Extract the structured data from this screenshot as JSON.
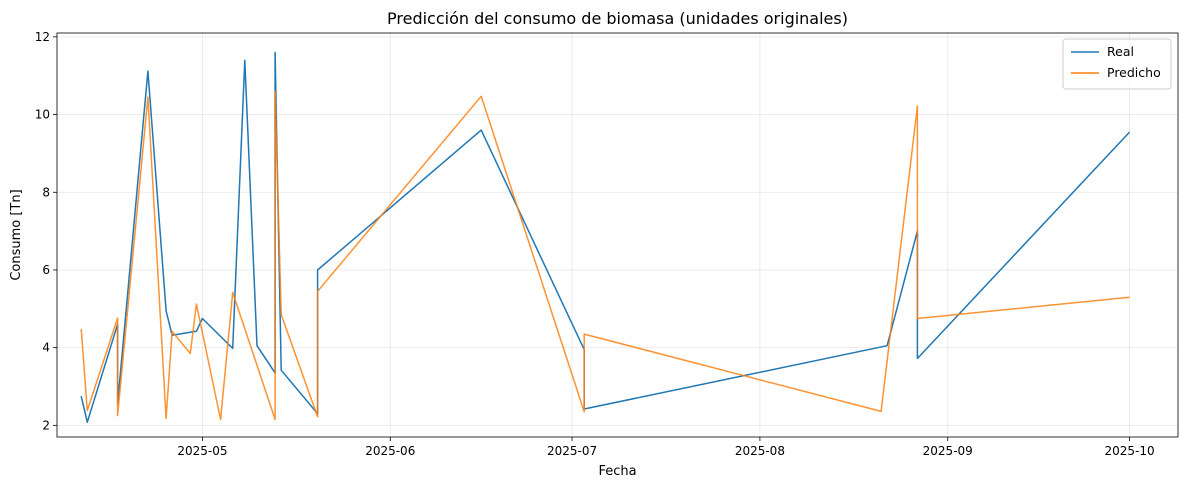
{
  "chart_data": {
    "type": "line",
    "title": "Predicción del consumo de biomasa (unidades originales)",
    "xlabel": "Fecha",
    "ylabel": "Consumo [Tn]",
    "x_type": "date",
    "xlim": [
      "2025-04-07",
      "2025-10-09"
    ],
    "ylim": [
      1.7,
      12.1
    ],
    "x_ticks": [
      "2025-05-01",
      "2025-06-01",
      "2025-07-01",
      "2025-08-01",
      "2025-09-01",
      "2025-10-01"
    ],
    "x_tick_labels": [
      "2025-05",
      "2025-06",
      "2025-07",
      "2025-08",
      "2025-09",
      "2025-10"
    ],
    "y_ticks": [
      2,
      4,
      6,
      8,
      10,
      12
    ],
    "y_tick_labels": [
      "2",
      "4",
      "6",
      "8",
      "10",
      "12"
    ],
    "grid": true,
    "legend_position": "top-right",
    "series": [
      {
        "name": "Real",
        "color": "#1f77b4",
        "x": [
          "2025-04-11",
          "2025-04-12",
          "2025-04-17",
          "2025-04-17",
          "2025-04-22",
          "2025-04-25",
          "2025-04-26",
          "2025-04-30",
          "2025-05-01",
          "2025-05-06",
          "2025-05-08",
          "2025-05-10",
          "2025-05-13",
          "2025-05-13",
          "2025-05-14",
          "2025-05-20",
          "2025-05-20",
          "2025-06-16",
          "2025-07-03",
          "2025-07-03",
          "2025-08-22",
          "2025-08-27",
          "2025-08-27",
          "2025-10-01"
        ],
        "values": [
          2.75,
          2.08,
          4.6,
          2.55,
          11.12,
          4.95,
          4.32,
          4.42,
          4.75,
          3.98,
          11.4,
          4.05,
          3.35,
          11.6,
          3.42,
          2.3,
          6.0,
          9.6,
          3.95,
          2.42,
          4.05,
          7.0,
          3.72,
          9.55
        ]
      },
      {
        "name": "Predicho",
        "color": "#ff7f0e",
        "x": [
          "2025-04-11",
          "2025-04-12",
          "2025-04-17",
          "2025-04-17",
          "2025-04-22",
          "2025-04-25",
          "2025-04-26",
          "2025-04-29",
          "2025-04-30",
          "2025-05-04",
          "2025-05-06",
          "2025-05-13",
          "2025-05-13",
          "2025-05-14",
          "2025-05-20",
          "2025-05-20",
          "2025-06-16",
          "2025-07-03",
          "2025-07-03",
          "2025-08-21",
          "2025-08-27",
          "2025-08-27",
          "2025-10-01"
        ],
        "values": [
          4.48,
          2.38,
          4.76,
          2.25,
          10.45,
          2.18,
          4.42,
          3.85,
          5.12,
          2.15,
          5.42,
          2.15,
          10.6,
          4.85,
          2.22,
          5.45,
          10.47,
          2.35,
          4.35,
          2.36,
          10.22,
          4.75,
          5.3
        ]
      }
    ]
  }
}
